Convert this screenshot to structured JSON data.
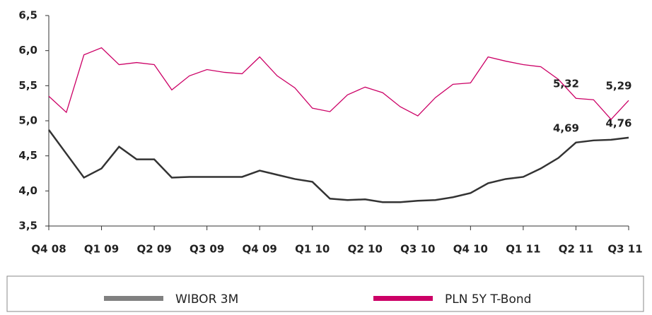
{
  "chart_data": {
    "type": "line",
    "categories": [
      "Q4 08",
      null,
      null,
      "Q1 09",
      null,
      null,
      "Q2 09",
      null,
      null,
      "Q3 09",
      null,
      null,
      "Q4 09",
      null,
      null,
      "Q1 10",
      null,
      null,
      "Q2 10",
      null,
      null,
      "Q3 10",
      null,
      null,
      "Q4 10",
      null,
      null,
      "Q1 11",
      null,
      null,
      "Q2 11",
      null,
      null,
      "Q3 11"
    ],
    "series": [
      {
        "name": "WIBOR 3M",
        "color": "#333333",
        "legend_color": "#808080",
        "values": [
          4.87,
          4.53,
          4.19,
          4.32,
          4.63,
          4.45,
          4.45,
          4.19,
          4.2,
          4.2,
          4.2,
          4.2,
          4.29,
          4.23,
          4.17,
          4.13,
          3.89,
          3.87,
          3.88,
          3.84,
          3.84,
          3.86,
          3.87,
          3.91,
          3.97,
          4.11,
          4.17,
          4.2,
          4.32,
          4.47,
          4.69,
          4.72,
          4.73,
          4.76
        ],
        "value_labels": [
          null,
          null,
          null,
          null,
          null,
          null,
          null,
          null,
          null,
          null,
          null,
          null,
          null,
          null,
          null,
          null,
          null,
          null,
          null,
          null,
          null,
          null,
          null,
          null,
          null,
          null,
          null,
          null,
          null,
          null,
          "4,69",
          null,
          null,
          "4,76"
        ]
      },
      {
        "name": "PLN 5Y T-Bond",
        "color": "#cc0066",
        "legend_color": "#cc0066",
        "values": [
          5.35,
          5.12,
          5.94,
          6.04,
          5.8,
          5.83,
          5.8,
          5.44,
          5.64,
          5.73,
          5.69,
          5.67,
          5.91,
          5.64,
          5.47,
          5.18,
          5.13,
          5.37,
          5.48,
          5.4,
          5.2,
          5.07,
          5.33,
          5.52,
          5.54,
          5.91,
          5.85,
          5.8,
          5.77,
          5.59,
          5.32,
          5.3,
          5.02,
          5.29
        ],
        "value_labels": [
          null,
          null,
          null,
          null,
          null,
          null,
          null,
          null,
          null,
          null,
          null,
          null,
          null,
          null,
          null,
          null,
          null,
          null,
          null,
          null,
          null,
          null,
          null,
          null,
          null,
          null,
          null,
          null,
          null,
          null,
          "5,32",
          null,
          null,
          "5,29"
        ]
      }
    ],
    "ylim": [
      3.5,
      6.5
    ],
    "yticks": [
      {
        "value": 3.5,
        "label": "3,5"
      },
      {
        "value": 4.0,
        "label": "4,0"
      },
      {
        "value": 4.5,
        "label": "4,5"
      },
      {
        "value": 5.0,
        "label": "5,0"
      },
      {
        "value": 5.5,
        "label": "5,5"
      },
      {
        "value": 6.0,
        "label": "6,0"
      },
      {
        "value": 6.5,
        "label": "6,5"
      }
    ],
    "grid": false
  }
}
